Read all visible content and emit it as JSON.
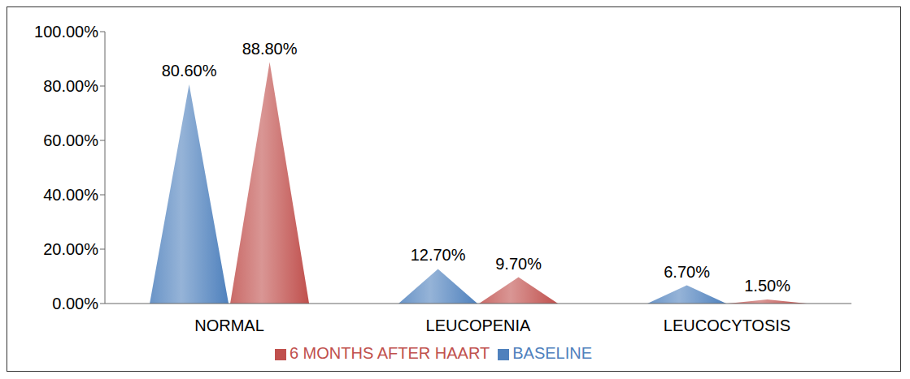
{
  "chart_data": {
    "type": "bar",
    "categories": [
      "NORMAL",
      "LEUCOPENIA",
      "LEUCOCYTOSIS"
    ],
    "series": [
      {
        "name": "BASELINE",
        "color": "#4f81bd",
        "values": [
          80.6,
          12.7,
          6.7
        ],
        "value_labels": [
          "80.60%",
          "12.70%",
          "6.70%"
        ]
      },
      {
        "name": "6 MONTHS AFTER HAART",
        "color": "#c0504d",
        "values": [
          88.8,
          9.7,
          1.5
        ],
        "value_labels": [
          "88.80%",
          "9.70%",
          "1.50%"
        ]
      }
    ],
    "ylim": [
      0,
      100
    ],
    "yticks": [
      {
        "value": 0,
        "label": "0.00%"
      },
      {
        "value": 20,
        "label": "20.00%"
      },
      {
        "value": 40,
        "label": "40.00%"
      },
      {
        "value": 60,
        "label": "60.00%"
      },
      {
        "value": 80,
        "label": "80.00%"
      },
      {
        "value": 100,
        "label": "100.00%"
      }
    ],
    "grid": false,
    "legend": "bottom",
    "data_labels": true
  }
}
